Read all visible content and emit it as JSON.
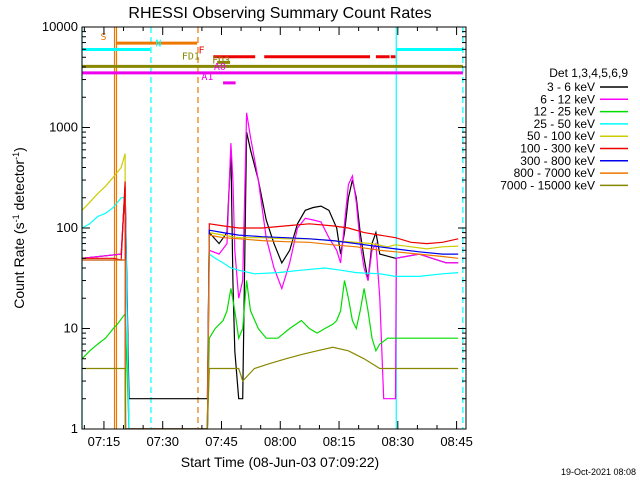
{
  "chart_data": {
    "type": "line",
    "title": "RHESSI Observing Summary Count Rates",
    "xlabel": "Start Time (08-Jun-03 07:09:22)",
    "ylabel": "Count Rate (s⁻¹ detector⁻¹)",
    "ylabel_main": "Count Rate (s",
    "ylabel_sup1": "-1",
    "ylabel_mid": " detector",
    "ylabel_sup2": "-1",
    "ylabel_end": ")",
    "scale_y": "log",
    "ylim": [
      1,
      10000
    ],
    "xlim_minutes": [
      0,
      98
    ],
    "x_ticks": [
      {
        "label": "07:15",
        "t": 5.6
      },
      {
        "label": "07:30",
        "t": 20.6
      },
      {
        "label": "07:45",
        "t": 35.6
      },
      {
        "label": "08:00",
        "t": 50.6
      },
      {
        "label": "08:15",
        "t": 65.6
      },
      {
        "label": "08:30",
        "t": 80.6
      },
      {
        "label": "08:45",
        "t": 95.6
      }
    ],
    "y_ticks": [
      {
        "label": "1",
        "v": 1
      },
      {
        "label": "10",
        "v": 10
      },
      {
        "label": "100",
        "v": 100
      },
      {
        "label": "1000",
        "v": 1000
      },
      {
        "label": "10000",
        "v": 10000
      }
    ],
    "legend_title": "Det 1,3,4,5,6,9",
    "legend_position": "right",
    "timestamp": "19-Oct-2021 08:08",
    "series": [
      {
        "name": "3 - 6 keV",
        "color": "#000000",
        "points": [
          [
            0,
            50
          ],
          [
            10,
            55
          ],
          [
            11,
            260
          ],
          [
            12,
            2
          ],
          [
            32,
            2
          ],
          [
            32.5,
            90
          ],
          [
            35,
            70
          ],
          [
            37,
            90
          ],
          [
            38,
            600
          ],
          [
            38.5,
            30
          ],
          [
            39,
            6
          ],
          [
            40,
            2
          ],
          [
            41,
            2
          ],
          [
            42,
            900
          ],
          [
            43,
            600
          ],
          [
            45,
            300
          ],
          [
            47,
            120
          ],
          [
            49,
            70
          ],
          [
            51,
            45
          ],
          [
            53,
            60
          ],
          [
            55,
            110
          ],
          [
            57,
            150
          ],
          [
            59,
            160
          ],
          [
            61,
            165
          ],
          [
            63,
            150
          ],
          [
            65,
            100
          ],
          [
            66,
            55
          ],
          [
            67,
            90
          ],
          [
            68,
            200
          ],
          [
            69,
            300
          ],
          [
            70,
            200
          ],
          [
            71,
            90
          ],
          [
            72,
            50
          ],
          [
            73,
            30
          ],
          [
            74,
            70
          ],
          [
            75,
            90
          ],
          [
            76,
            55
          ],
          [
            80,
            50
          ],
          [
            86,
            55
          ],
          [
            93,
            45
          ],
          [
            96,
            45
          ]
        ]
      },
      {
        "name": "6 - 12 keV",
        "color": "#ff00ff",
        "points": [
          [
            0,
            50
          ],
          [
            10,
            55
          ],
          [
            11,
            260
          ],
          [
            12,
            1
          ],
          [
            32,
            1
          ],
          [
            32.5,
            60
          ],
          [
            35,
            55
          ],
          [
            37,
            70
          ],
          [
            38,
            700
          ],
          [
            38.5,
            300
          ],
          [
            39,
            60
          ],
          [
            40,
            20
          ],
          [
            41,
            30
          ],
          [
            42,
            1400
          ],
          [
            43,
            800
          ],
          [
            45,
            300
          ],
          [
            47,
            80
          ],
          [
            49,
            40
          ],
          [
            51,
            25
          ],
          [
            53,
            45
          ],
          [
            55,
            100
          ],
          [
            57,
            125
          ],
          [
            59,
            120
          ],
          [
            61,
            115
          ],
          [
            63,
            80
          ],
          [
            65,
            60
          ],
          [
            66,
            45
          ],
          [
            67,
            110
          ],
          [
            68,
            270
          ],
          [
            69,
            330
          ],
          [
            70,
            180
          ],
          [
            71,
            70
          ],
          [
            72,
            40
          ],
          [
            73,
            30
          ],
          [
            74,
            60
          ],
          [
            75,
            70
          ],
          [
            76,
            20
          ],
          [
            77,
            2
          ],
          [
            80,
            2
          ],
          [
            80.2,
            50
          ],
          [
            86,
            55
          ],
          [
            93,
            45
          ],
          [
            96,
            45
          ]
        ]
      },
      {
        "name": "12 - 25 keV",
        "color": "#00dd00",
        "points": [
          [
            0,
            5
          ],
          [
            2,
            6
          ],
          [
            4,
            7
          ],
          [
            6,
            8
          ],
          [
            8,
            10
          ],
          [
            9,
            11
          ],
          [
            11,
            14
          ],
          [
            12,
            1
          ],
          [
            32,
            1
          ],
          [
            32.5,
            8
          ],
          [
            34,
            10
          ],
          [
            36,
            12
          ],
          [
            37,
            15
          ],
          [
            38,
            25
          ],
          [
            39,
            15
          ],
          [
            40,
            8
          ],
          [
            41,
            10
          ],
          [
            42,
            30
          ],
          [
            43,
            15
          ],
          [
            45,
            10
          ],
          [
            47,
            8
          ],
          [
            50,
            8
          ],
          [
            53,
            10
          ],
          [
            56,
            12
          ],
          [
            58,
            10
          ],
          [
            60,
            9
          ],
          [
            62,
            10
          ],
          [
            64,
            11
          ],
          [
            65,
            12
          ],
          [
            66,
            15
          ],
          [
            67,
            30
          ],
          [
            68,
            20
          ],
          [
            69,
            12
          ],
          [
            70,
            10
          ],
          [
            71,
            15
          ],
          [
            72,
            25
          ],
          [
            73,
            15
          ],
          [
            74,
            8
          ],
          [
            75,
            6
          ],
          [
            76,
            7
          ],
          [
            78,
            8
          ],
          [
            80,
            8
          ],
          [
            96,
            8
          ]
        ]
      },
      {
        "name": "25 - 50 keV",
        "color": "#00ffff",
        "points": [
          [
            0,
            100
          ],
          [
            2,
            110
          ],
          [
            4,
            130
          ],
          [
            6,
            140
          ],
          [
            8,
            160
          ],
          [
            10,
            200
          ],
          [
            11,
            200
          ],
          [
            12,
            1
          ],
          [
            32,
            1
          ],
          [
            32.5,
            55
          ],
          [
            34,
            50
          ],
          [
            36,
            45
          ],
          [
            38,
            40
          ],
          [
            40,
            38
          ],
          [
            44,
            35
          ],
          [
            50,
            36
          ],
          [
            56,
            38
          ],
          [
            62,
            40
          ],
          [
            66,
            38
          ],
          [
            70,
            36
          ],
          [
            76,
            35
          ],
          [
            80,
            33
          ],
          [
            86,
            33
          ],
          [
            92,
            35
          ],
          [
            96,
            36
          ]
        ]
      },
      {
        "name": "50 - 100 keV",
        "color": "#cccc00",
        "points": [
          [
            0,
            150
          ],
          [
            2,
            180
          ],
          [
            4,
            220
          ],
          [
            6,
            260
          ],
          [
            8,
            320
          ],
          [
            10,
            400
          ],
          [
            11,
            550
          ],
          [
            11.1,
            1
          ],
          [
            32,
            1
          ],
          [
            32.5,
            90
          ],
          [
            36,
            85
          ],
          [
            40,
            80
          ],
          [
            46,
            80
          ],
          [
            52,
            78
          ],
          [
            58,
            78
          ],
          [
            64,
            75
          ],
          [
            70,
            72
          ],
          [
            74,
            70
          ],
          [
            78,
            65
          ],
          [
            80,
            68
          ],
          [
            84,
            65
          ],
          [
            88,
            62
          ],
          [
            92,
            65
          ],
          [
            96,
            66
          ]
        ]
      },
      {
        "name": "100 - 300 keV",
        "color": "#ee0000",
        "points": [
          [
            0,
            50
          ],
          [
            8,
            50
          ],
          [
            10,
            48
          ],
          [
            11,
            290
          ],
          [
            11.1,
            1
          ],
          [
            32,
            1
          ],
          [
            32.5,
            110
          ],
          [
            36,
            105
          ],
          [
            40,
            100
          ],
          [
            46,
            100
          ],
          [
            52,
            105
          ],
          [
            58,
            110
          ],
          [
            64,
            105
          ],
          [
            68,
            100
          ],
          [
            72,
            90
          ],
          [
            76,
            85
          ],
          [
            80,
            80
          ],
          [
            84,
            72
          ],
          [
            88,
            70
          ],
          [
            92,
            72
          ],
          [
            96,
            78
          ]
        ]
      },
      {
        "name": "300 - 800 keV",
        "color": "#0000ee",
        "points": [
          [
            0,
            48
          ],
          [
            11,
            48
          ],
          [
            11.1,
            1
          ],
          [
            32,
            1
          ],
          [
            32.5,
            95
          ],
          [
            36,
            90
          ],
          [
            40,
            85
          ],
          [
            46,
            82
          ],
          [
            52,
            80
          ],
          [
            58,
            78
          ],
          [
            64,
            75
          ],
          [
            70,
            70
          ],
          [
            76,
            65
          ],
          [
            80,
            62
          ],
          [
            86,
            58
          ],
          [
            92,
            55
          ],
          [
            96,
            55
          ]
        ]
      },
      {
        "name": "800 - 7000 keV",
        "color": "#ee7700",
        "points": [
          [
            0,
            48
          ],
          [
            11,
            48
          ],
          [
            11.1,
            1
          ],
          [
            32,
            1
          ],
          [
            32.5,
            85
          ],
          [
            36,
            80
          ],
          [
            40,
            78
          ],
          [
            46,
            75
          ],
          [
            52,
            73
          ],
          [
            58,
            72
          ],
          [
            64,
            68
          ],
          [
            70,
            65
          ],
          [
            76,
            60
          ],
          [
            80,
            58
          ],
          [
            86,
            55
          ],
          [
            92,
            52
          ],
          [
            96,
            50
          ]
        ]
      },
      {
        "name": "7000 - 15000 keV",
        "color": "#888800",
        "points": [
          [
            0,
            4
          ],
          [
            11,
            4
          ],
          [
            11.1,
            1
          ],
          [
            32,
            1
          ],
          [
            32.5,
            4
          ],
          [
            40,
            4
          ],
          [
            41,
            3
          ],
          [
            44,
            4
          ],
          [
            48,
            4.5
          ],
          [
            52,
            5
          ],
          [
            56,
            5.5
          ],
          [
            60,
            6
          ],
          [
            64,
            6.5
          ],
          [
            68,
            6
          ],
          [
            72,
            5
          ],
          [
            76,
            4
          ],
          [
            80,
            4
          ],
          [
            86,
            4
          ],
          [
            92,
            4
          ],
          [
            96,
            4
          ]
        ]
      }
    ],
    "verticals": [
      {
        "t": 0,
        "color": "#00ffff",
        "style": "solid"
      },
      {
        "t": 8.3,
        "color": "#ee7700",
        "style": "solid"
      },
      {
        "t": 8.8,
        "color": "#ee7700",
        "style": "solid"
      },
      {
        "t": 17.6,
        "color": "#00ffff",
        "style": "dashed"
      },
      {
        "t": 29.6,
        "color": "#ee7700",
        "style": "dashed"
      },
      {
        "t": 80.2,
        "color": "#00ffff",
        "style": "solid"
      },
      {
        "t": 97.2,
        "color": "#00ffff",
        "style": "dashed"
      }
    ],
    "flags": [
      {
        "label": "S",
        "color": "#ee7700",
        "label_t": 5.5,
        "segments": [
          [
            8.9,
            29.4
          ]
        ],
        "level": 0.96
      },
      {
        "label": "N",
        "color": "#00ffff",
        "label_t": 19.5,
        "segments": [
          [
            0,
            17.4
          ],
          [
            80.3,
            97.2
          ]
        ],
        "level": 0.944
      },
      {
        "label": "F",
        "color": "#ee0000",
        "label_t": 30.5,
        "segments": [
          [
            33.5,
            44.2
          ],
          [
            46.5,
            73.5
          ],
          [
            75,
            78.5
          ],
          [
            78.8,
            80
          ]
        ],
        "level": 0.926
      },
      {
        "label": "FD1",
        "color": "#888800",
        "label_t": 27.8,
        "segments": [
          [
            34.5,
            37.8
          ]
        ],
        "level": 0.912
      },
      {
        "label": "FD3",
        "color": "#888800",
        "label_t": 35.5,
        "segments": [
          [
            0,
            97.2
          ]
        ],
        "level": 0.902
      },
      {
        "label": "A0",
        "color": "#ee00ee",
        "label_t": 35.2,
        "segments": [
          [
            0,
            97.2
          ]
        ],
        "level": 0.886
      },
      {
        "label": "A1",
        "color": "#ee00ee",
        "label_t": 32,
        "segments": [
          [
            36,
            39.2
          ]
        ],
        "level": 0.861
      }
    ]
  }
}
